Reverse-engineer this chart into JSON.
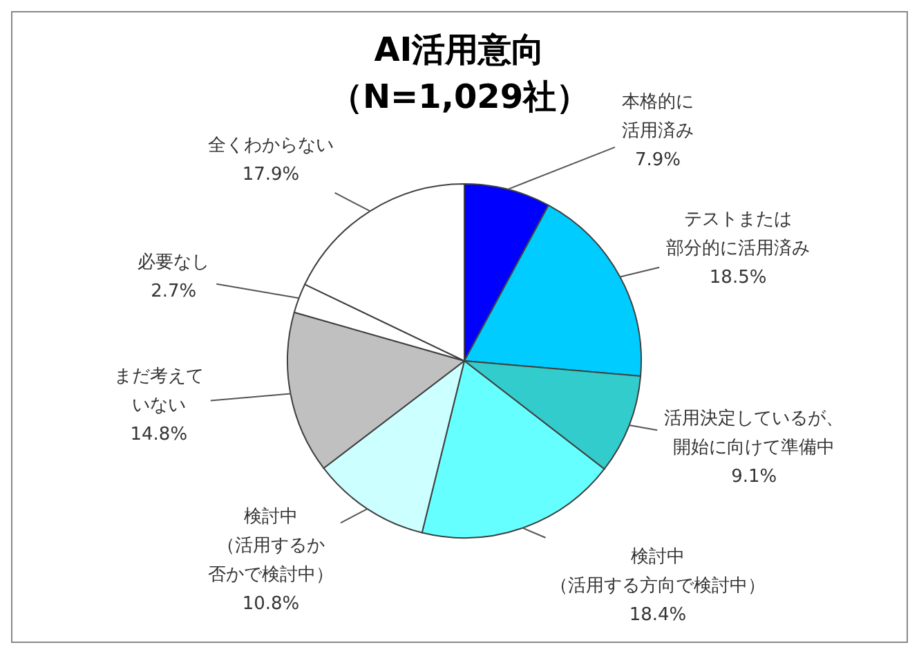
{
  "chart_data": {
    "type": "pie",
    "title": "AI活用意向",
    "subtitle": "（N=1,029社）",
    "categories": [
      "本格的に活用済み",
      "テストまたは部分的に活用済み",
      "活用決定しているが、開始に向けて準備中",
      "検討中（活用する方向で検討中）",
      "検討中（活用するか否かで検討中）",
      "まだ考えていない",
      "必要なし",
      "全くわからない"
    ],
    "values": [
      7.9,
      18.5,
      9.1,
      18.4,
      10.8,
      14.8,
      2.7,
      17.9
    ],
    "value_labels": [
      "7.9%",
      "18.5%",
      "9.1%",
      "18.4%",
      "10.8%",
      "14.8%",
      "2.7%",
      "17.9%"
    ],
    "colors": [
      "#0000ff",
      "#00ccff",
      "#33cccc",
      "#66ffff",
      "#ccffff",
      "#c0c0c0",
      "#ffffff",
      "#ffffff"
    ]
  }
}
